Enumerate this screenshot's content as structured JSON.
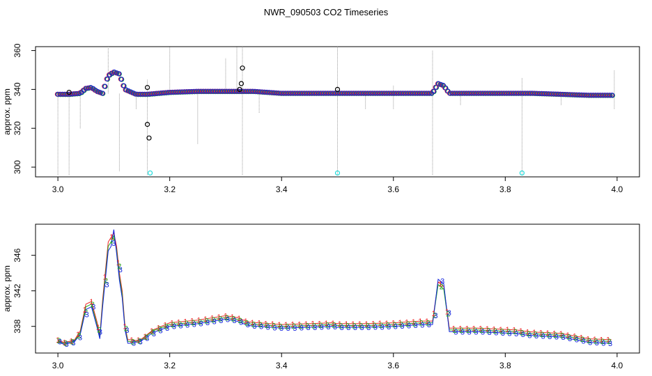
{
  "title": "NWR_090503  CO2 Timeseries",
  "colors": {
    "frame": "#000000",
    "spikes": "#9a9a9a",
    "red": "#ee2222",
    "green": "#22aa22",
    "blue": "#1122dd",
    "black": "#000000",
    "cyan": "#22dddd"
  },
  "chart_data": [
    {
      "type": "scatter",
      "title": "NWR_090503  CO2 Timeseries",
      "xlabel": "",
      "ylabel": "approx. ppm",
      "xlim": [
        2.96,
        4.04
      ],
      "ylim": [
        295,
        362
      ],
      "xticks": [
        3.0,
        3.2,
        3.4,
        3.6,
        3.8,
        4.0
      ],
      "xtick_labels": [
        "3.0",
        "3.2",
        "3.4",
        "3.6",
        "3.8",
        "4.0"
      ],
      "yticks": [
        300,
        320,
        340,
        360
      ],
      "ytick_labels": [
        "300",
        "320",
        "340",
        "360"
      ],
      "grid": false,
      "series": [
        {
          "values_x": [
            3.0,
            3.02,
            3.04,
            3.05,
            3.06,
            3.07,
            3.08,
            3.09,
            3.1,
            3.11,
            3.12,
            3.14,
            3.16,
            3.2,
            3.25,
            3.3,
            3.33,
            3.35,
            3.4,
            3.45,
            3.5,
            3.55,
            3.6,
            3.65,
            3.67,
            3.68,
            3.69,
            3.7,
            3.75,
            3.8,
            3.85,
            3.9,
            3.95,
            3.99
          ],
          "values_y": [
            337.5,
            337.5,
            338,
            340.5,
            341,
            339,
            338,
            347,
            349,
            348,
            340,
            337.5,
            337.5,
            338.5,
            339,
            339,
            339,
            339,
            338,
            338,
            338,
            338,
            338,
            338,
            338,
            343,
            342,
            338,
            338,
            338,
            338,
            337.5,
            337,
            337
          ]
        },
        {
          "outliers_black": [
            [
              3.02,
              338.5
            ],
            [
              3.16,
              341
            ],
            [
              3.16,
              322
            ],
            [
              3.163,
              315
            ],
            [
              3.325,
              340
            ],
            [
              3.328,
              343
            ],
            [
              3.33,
              351
            ],
            [
              3.5,
              340
            ]
          ],
          "outliers_cyan": [
            [
              3.165,
              297
            ],
            [
              3.5,
              297
            ],
            [
              3.83,
              297
            ]
          ]
        }
      ],
      "spikes": [
        [
          3.0,
          296,
          338
        ],
        [
          3.02,
          296,
          338
        ],
        [
          3.04,
          320,
          338
        ],
        [
          3.09,
          338,
          362
        ],
        [
          3.11,
          298,
          338
        ],
        [
          3.14,
          330,
          338
        ],
        [
          3.16,
          296,
          345
        ],
        [
          3.2,
          340,
          362
        ],
        [
          3.25,
          312,
          338
        ],
        [
          3.3,
          340,
          356
        ],
        [
          3.32,
          340,
          362
        ],
        [
          3.33,
          296,
          362
        ],
        [
          3.36,
          328,
          340
        ],
        [
          3.5,
          296,
          362
        ],
        [
          3.55,
          330,
          338
        ],
        [
          3.6,
          330,
          342
        ],
        [
          3.67,
          296,
          360
        ],
        [
          3.72,
          332,
          338
        ],
        [
          3.83,
          296,
          346
        ],
        [
          3.9,
          332,
          338
        ],
        [
          3.995,
          330,
          350
        ]
      ]
    },
    {
      "type": "line",
      "xlabel": "",
      "ylabel": "approx. ppm",
      "xlim": [
        2.96,
        4.04
      ],
      "ylim": [
        335,
        349.5
      ],
      "xticks": [
        3.0,
        3.2,
        3.4,
        3.6,
        3.8,
        4.0
      ],
      "xtick_labels": [
        "3.0",
        "3.2",
        "3.4",
        "3.6",
        "3.8",
        "4.0"
      ],
      "yticks": [
        338,
        342,
        346
      ],
      "ytick_labels": [
        "338",
        "342",
        "346"
      ],
      "grid": false,
      "point_labels": [
        "1",
        "2",
        "3"
      ],
      "x": [
        3.0,
        3.01,
        3.02,
        3.03,
        3.04,
        3.05,
        3.06,
        3.07,
        3.075,
        3.08,
        3.09,
        3.095,
        3.1,
        3.105,
        3.11,
        3.115,
        3.12,
        3.125,
        3.13,
        3.14,
        3.15,
        3.17,
        3.2,
        3.25,
        3.3,
        3.32,
        3.34,
        3.4,
        3.45,
        3.49,
        3.5,
        3.55,
        3.6,
        3.65,
        3.67,
        3.68,
        3.69,
        3.7,
        3.75,
        3.82,
        3.84,
        3.9,
        3.95,
        3.99
      ],
      "series": [
        {
          "name": "1",
          "values": [
            336.5,
            336.2,
            336.3,
            336.5,
            337.5,
            340.5,
            340.8,
            338.5,
            337.0,
            341.0,
            347.5,
            348.0,
            348.5,
            347.0,
            344.0,
            342.0,
            338.0,
            336.5,
            336.5,
            336.4,
            336.6,
            337.6,
            338.4,
            338.7,
            339.2,
            339.0,
            338.5,
            338.2,
            338.3,
            338.4,
            338.3,
            338.3,
            338.4,
            338.6,
            338.6,
            343.0,
            342.5,
            337.8,
            337.8,
            337.6,
            337.4,
            337.2,
            336.6,
            336.5
          ]
        },
        {
          "name": "2",
          "values": [
            336.4,
            336.1,
            336.2,
            336.4,
            337.3,
            340.2,
            340.5,
            338.2,
            336.8,
            340.6,
            347.0,
            347.5,
            348.2,
            346.6,
            343.6,
            341.6,
            337.8,
            336.3,
            336.3,
            336.3,
            336.5,
            337.5,
            338.2,
            338.5,
            339.0,
            338.8,
            338.3,
            338.0,
            338.1,
            338.2,
            338.1,
            338.1,
            338.2,
            338.4,
            338.4,
            342.7,
            342.2,
            337.6,
            337.6,
            337.4,
            337.2,
            337.0,
            336.4,
            336.3
          ]
        },
        {
          "name": "3",
          "values": [
            336.3,
            336.0,
            336.1,
            336.3,
            337.1,
            339.9,
            340.2,
            337.9,
            336.6,
            340.2,
            346.5,
            347.0,
            348.9,
            346.2,
            343.2,
            341.2,
            337.6,
            336.1,
            336.1,
            336.2,
            336.4,
            337.3,
            338.0,
            338.3,
            338.8,
            338.6,
            338.1,
            337.8,
            337.9,
            338.0,
            337.9,
            337.9,
            338.0,
            338.2,
            338.2,
            343.3,
            342.8,
            337.4,
            337.4,
            337.2,
            337.0,
            336.8,
            336.2,
            336.1
          ]
        }
      ]
    }
  ]
}
